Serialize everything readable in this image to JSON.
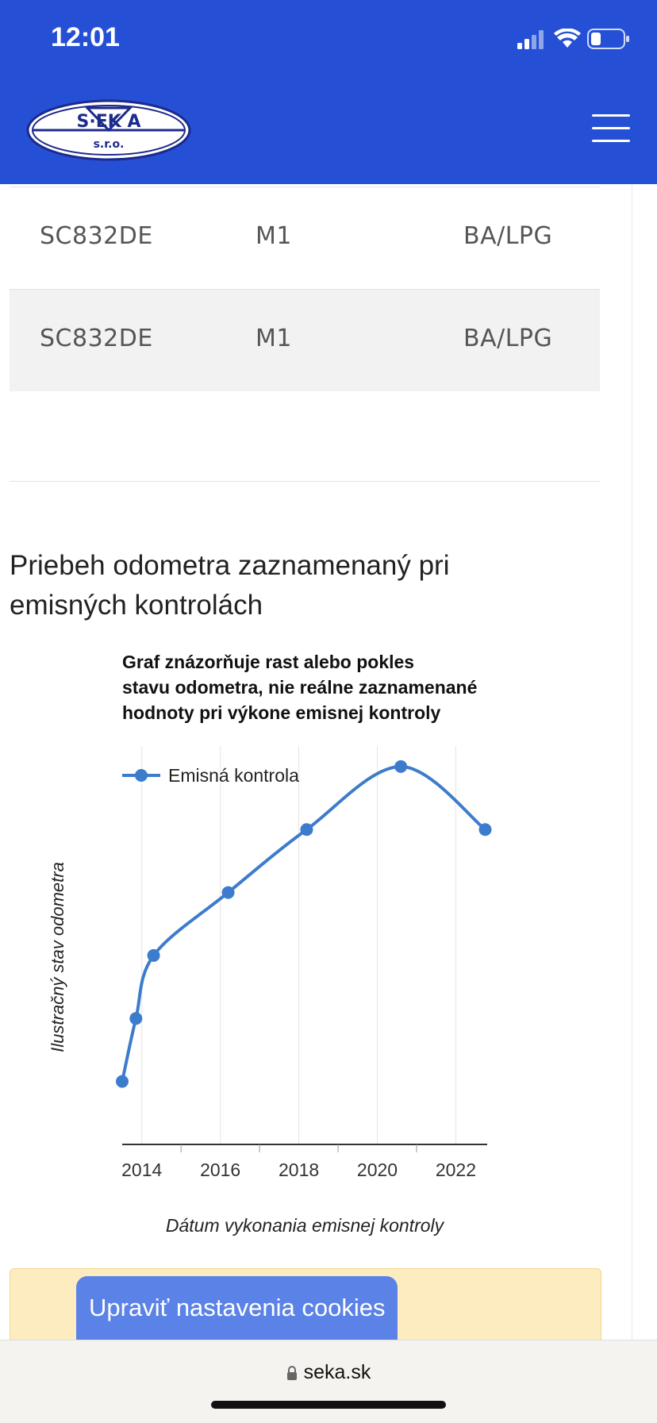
{
  "status_bar": {
    "time": "12:01"
  },
  "header": {
    "logo_text_main": "S·EK A",
    "logo_text_sub": "s.r.o."
  },
  "table": {
    "rows": [
      {
        "plate": "SC832DE",
        "category": "M1",
        "fuel": "BA/LPG"
      },
      {
        "plate": "SC832DE",
        "category": "M1",
        "fuel": "BA/LPG"
      }
    ]
  },
  "section": {
    "title": "Priebeh odometra zaznamenaný pri emisných kontrolách"
  },
  "chart_data": {
    "type": "line",
    "title": "Graf znázorňuje rast alebo pokles stavu odometra, nie reálne zaznamenané hodnoty pri výkone emisnej kontroly",
    "xlabel": "Dátum vykonania emisnej kontroly",
    "ylabel": "Ilustračný stav odometra",
    "legend": "top-left",
    "grid": true,
    "xlim": [
      2013.5,
      2022.8
    ],
    "ylim": [
      0,
      6.2
    ],
    "x_ticks": [
      2014,
      2016,
      2018,
      2020,
      2022
    ],
    "x_tick_labels": [
      "2014",
      "2016",
      "2018",
      "2020",
      "2022"
    ],
    "series": [
      {
        "name": "Emisná kontrola",
        "color": "#3d7ccc",
        "x": [
          2013.5,
          2013.85,
          2014.3,
          2016.2,
          2018.2,
          2020.6,
          2022.75
        ],
        "y": [
          1,
          2,
          3,
          4,
          5,
          6,
          5
        ]
      }
    ]
  },
  "cookie": {
    "button_label": "Upraviť nastavenia cookies"
  },
  "browser": {
    "url": "seka.sk"
  }
}
